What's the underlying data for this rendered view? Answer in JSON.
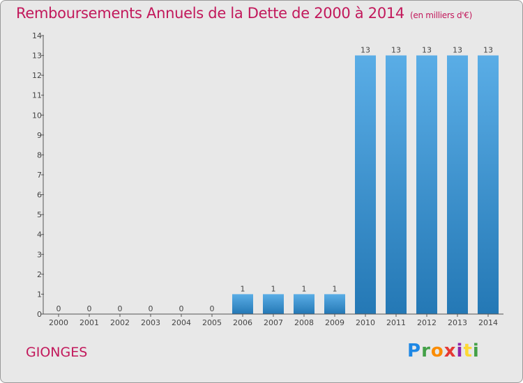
{
  "header": {
    "title": "Remboursements Annuels de la Dette de 2000 à 2014",
    "subtitle": "(en milliers d'€)"
  },
  "footer": {
    "commune": "GIONGES",
    "logo_letters": [
      "P",
      "r",
      "o",
      "x",
      "i",
      "t",
      "i"
    ],
    "logo_colors": [
      "#1e88e5",
      "#43a047",
      "#fb8c00",
      "#e53935",
      "#8e24aa",
      "#fdd835",
      "#43a047"
    ]
  },
  "colors": {
    "accent": "#c2185b",
    "bar_top": "#5aade6",
    "bar_bottom": "#2478b5",
    "axis": "#555555",
    "text": "#444444"
  },
  "chart_data": {
    "type": "bar",
    "categories": [
      "2000",
      "2001",
      "2002",
      "2003",
      "2004",
      "2005",
      "2006",
      "2007",
      "2008",
      "2009",
      "2010",
      "2011",
      "2012",
      "2013",
      "2014"
    ],
    "values": [
      0,
      0,
      0,
      0,
      0,
      0,
      1,
      1,
      1,
      1,
      13,
      13,
      13,
      13,
      13
    ],
    "data_labels": [
      "0",
      "0",
      "0",
      "0",
      "0",
      "0",
      "1",
      "1",
      "1",
      "1",
      "13",
      "13",
      "13",
      "13",
      "13"
    ],
    "y_ticks": [
      "0",
      "1",
      "2",
      "3",
      "4",
      "5",
      "6",
      "7",
      "8",
      "9",
      "10",
      "11",
      "12",
      "13",
      "14"
    ],
    "ylim": [
      0,
      14
    ],
    "grid": false
  }
}
